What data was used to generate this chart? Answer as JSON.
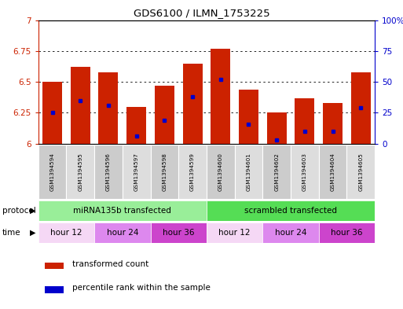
{
  "title": "GDS6100 / ILMN_1753225",
  "samples": [
    "GSM1394594",
    "GSM1394595",
    "GSM1394596",
    "GSM1394597",
    "GSM1394598",
    "GSM1394599",
    "GSM1394600",
    "GSM1394601",
    "GSM1394602",
    "GSM1394603",
    "GSM1394604",
    "GSM1394605"
  ],
  "red_values": [
    6.5,
    6.62,
    6.58,
    6.3,
    6.47,
    6.65,
    6.77,
    6.44,
    6.25,
    6.37,
    6.33,
    6.58
  ],
  "blue_values": [
    6.25,
    6.35,
    6.31,
    6.06,
    6.19,
    6.38,
    6.52,
    6.16,
    6.03,
    6.1,
    6.1,
    6.29
  ],
  "ymin": 6.0,
  "ymax": 7.0,
  "yticks_left": [
    6.0,
    6.25,
    6.5,
    6.75,
    7.0
  ],
  "ytick_labels_left": [
    "6",
    "6.25",
    "6.5",
    "6.75",
    "7"
  ],
  "yticks_right": [
    6.0,
    6.25,
    6.5,
    6.75,
    7.0
  ],
  "ytick_labels_right": [
    "0",
    "25",
    "50",
    "75",
    "100%"
  ],
  "bar_color": "#cc2200",
  "dot_color": "#0000cc",
  "bar_width": 0.7,
  "protocol_data": [
    {
      "label": "miRNA135b transfected",
      "start": 0,
      "end": 6,
      "color": "#99ee99"
    },
    {
      "label": "scrambled transfected",
      "start": 6,
      "end": 12,
      "color": "#55dd55"
    }
  ],
  "time_groups": [
    {
      "label": "hour 12",
      "start": 0,
      "end": 2,
      "color": "#f5d8f5"
    },
    {
      "label": "hour 24",
      "start": 2,
      "end": 4,
      "color": "#dd88ee"
    },
    {
      "label": "hour 36",
      "start": 4,
      "end": 6,
      "color": "#cc44cc"
    },
    {
      "label": "hour 12",
      "start": 6,
      "end": 8,
      "color": "#f5d8f5"
    },
    {
      "label": "hour 24",
      "start": 8,
      "end": 10,
      "color": "#dd88ee"
    },
    {
      "label": "hour 36",
      "start": 10,
      "end": 12,
      "color": "#cc44cc"
    }
  ],
  "legend_red_label": "transformed count",
  "legend_blue_label": "percentile rank within the sample",
  "tick_color_left": "#cc2200",
  "tick_color_right": "#0000cc",
  "sample_bg_color": "#cccccc",
  "sample_alt_bg_color": "#dddddd",
  "grid_dotted_color": "#333333"
}
